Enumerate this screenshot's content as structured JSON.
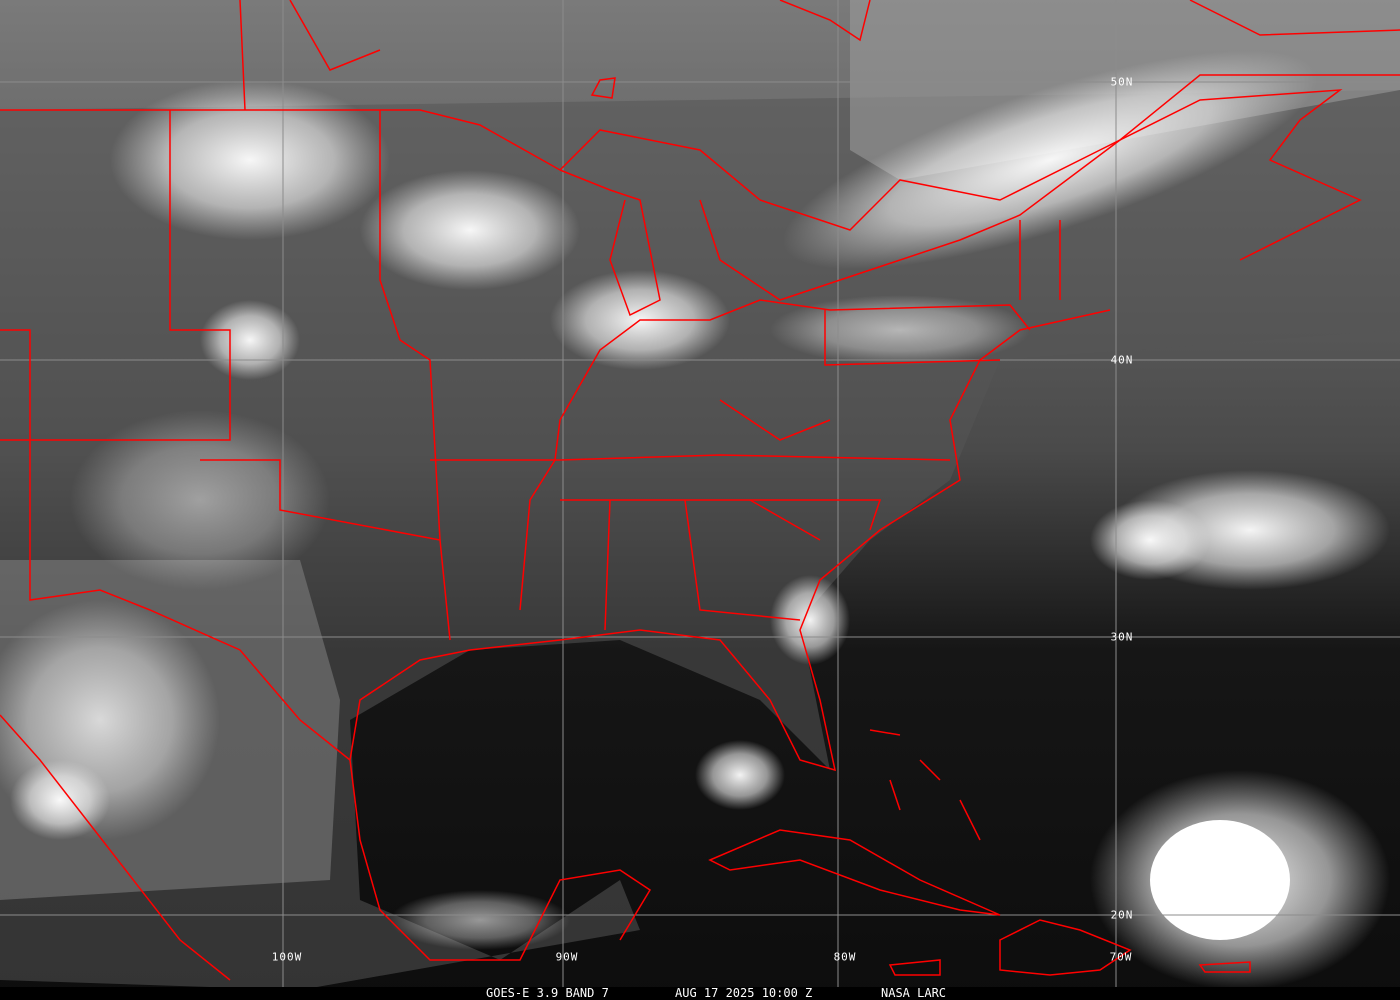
{
  "caption": {
    "product": "GOES-E 3.9 BAND 7",
    "datetime": "AUG 17 2025 10:00 Z",
    "source": "NASA LARC"
  },
  "grid": {
    "latitudes": [
      "50N",
      "40N",
      "30N",
      "20N"
    ],
    "longitudes": [
      "100W",
      "90W",
      "80W",
      "70W"
    ]
  },
  "colors": {
    "borders": "#ff0000",
    "grid": "#8c8c8c",
    "caption_bg": "#000000"
  }
}
